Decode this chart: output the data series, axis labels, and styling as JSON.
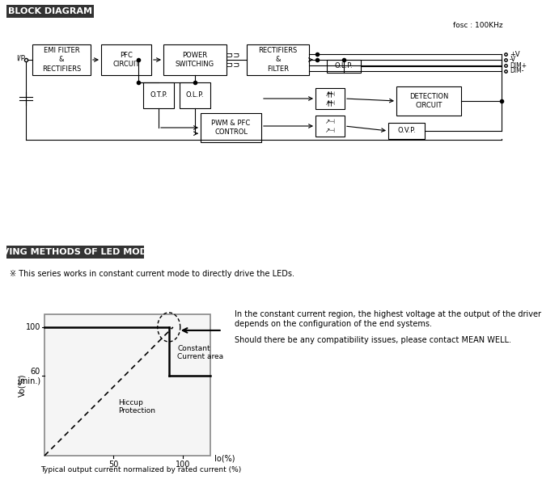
{
  "title_block": "BLOCK DIAGRAM",
  "title_driving": "DRIVING METHODS OF LED MODULE",
  "fosc_label": "fosc : 100KHz",
  "note_text": "※ This series works in constant current mode to directly drive the LEDs.",
  "right_text_line1": "In the constant current region, the highest voltage at the output of the driver",
  "right_text_line2": "depends on the configuration of the end systems.",
  "right_text_line3": "Should there be any compatibility issues, please contact MEAN WELL.",
  "bottom_label": "Typical output current normalized by rated current (%)",
  "constant_current_label": "Constant\nCurrent area",
  "hiccup_label": "Hiccup\nProtection",
  "bg_color": "#ffffff"
}
